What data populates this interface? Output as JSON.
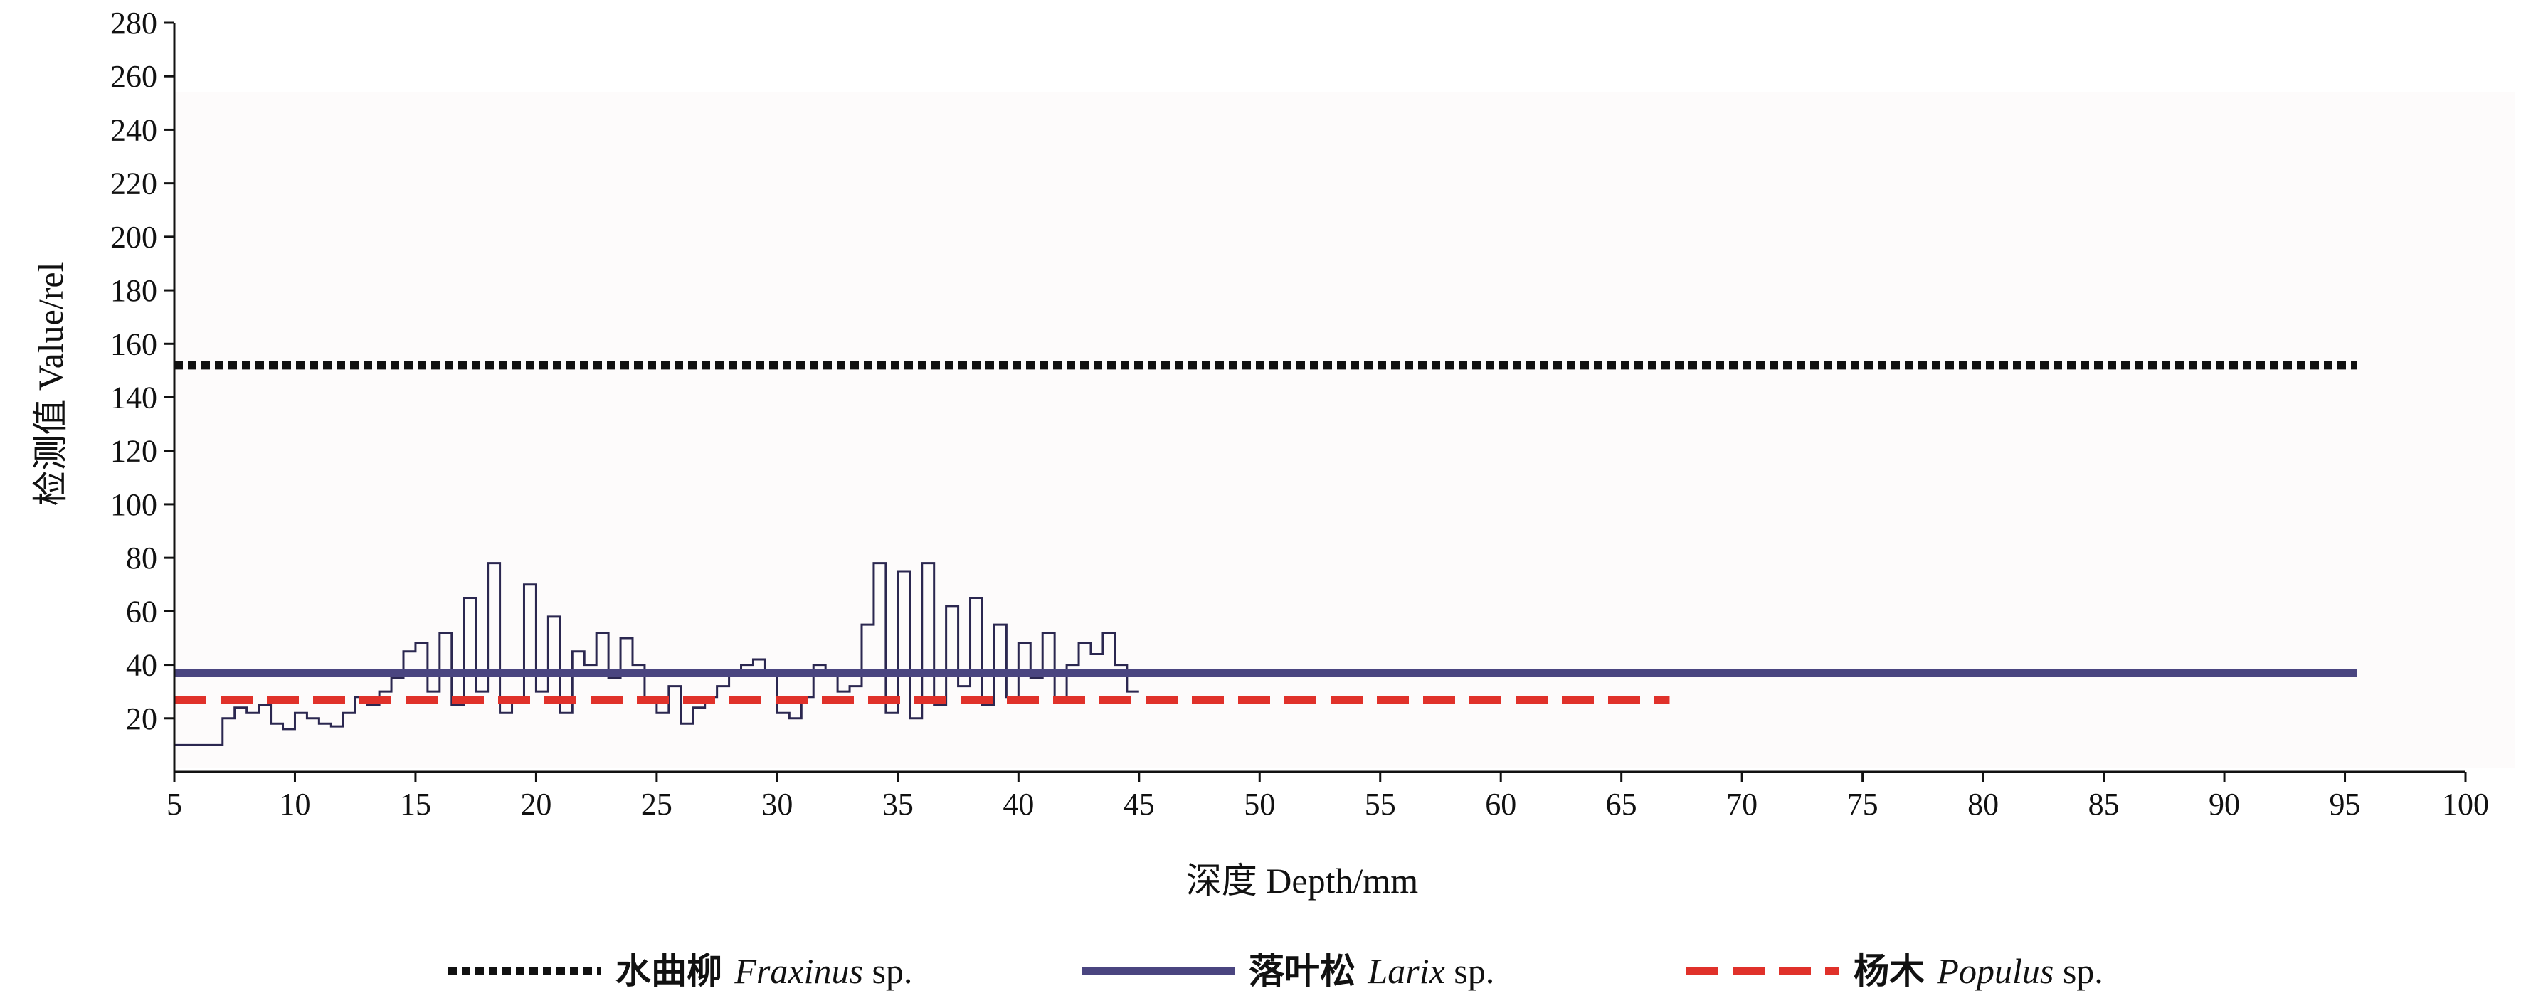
{
  "chart_data": {
    "type": "line",
    "xlabel": "深度  Depth/mm",
    "ylabel": "检测值  Value/rel",
    "xlim": [
      5,
      100
    ],
    "ylim": [
      0,
      280
    ],
    "x_ticks": [
      5,
      10,
      15,
      20,
      25,
      30,
      35,
      40,
      45,
      50,
      55,
      60,
      65,
      70,
      75,
      80,
      85,
      90,
      95,
      100
    ],
    "y_ticks": [
      20,
      40,
      60,
      80,
      100,
      120,
      140,
      160,
      180,
      200,
      220,
      240,
      260,
      280
    ],
    "grid": false,
    "legend_position": "bottom",
    "series": [
      {
        "name_cn": "水曲柳",
        "name_latin": "Fraxinus",
        "name_suffix": "sp.",
        "style": "dotted",
        "color": "#111111",
        "x": [
          5,
          95.5
        ],
        "y": [
          152,
          152
        ]
      },
      {
        "name_cn": "落叶松",
        "name_latin": "Larix",
        "name_suffix": "sp.",
        "style": "solid",
        "color": "#4a4580",
        "x": [
          5,
          95.5
        ],
        "y": [
          37,
          37
        ]
      },
      {
        "name_cn": "杨木",
        "name_latin": "Populus",
        "name_suffix": "sp.",
        "style": "dashed",
        "color": "#e0312a",
        "x": [
          5,
          67
        ],
        "y": [
          27,
          27
        ]
      }
    ],
    "trace": {
      "color": "#2b2750",
      "x": [
        5,
        6.5,
        7,
        7.5,
        8,
        8.5,
        9,
        9.5,
        10,
        10.5,
        11,
        11.5,
        12,
        12.5,
        13,
        13.5,
        14,
        14.5,
        15,
        15.5,
        16,
        16.5,
        17,
        17.5,
        18,
        18.5,
        19,
        19.5,
        20,
        20.5,
        21,
        21.5,
        22,
        22.5,
        23,
        23.5,
        24,
        24.5,
        25,
        25.5,
        26,
        26.5,
        27,
        27.5,
        28,
        28.5,
        29,
        29.5,
        30,
        30.5,
        31,
        31.5,
        32,
        32.5,
        33,
        33.5,
        34,
        34.5,
        35,
        35.5,
        36,
        36.5,
        37,
        37.5,
        38,
        38.5,
        39,
        39.5,
        40,
        40.5,
        41,
        41.5,
        42,
        42.5,
        43,
        43.5,
        44,
        44.5,
        45
      ],
      "y": [
        10,
        10,
        20,
        24,
        22,
        25,
        18,
        16,
        22,
        20,
        18,
        17,
        22,
        28,
        25,
        30,
        35,
        45,
        48,
        30,
        52,
        25,
        65,
        30,
        78,
        22,
        28,
        70,
        30,
        58,
        22,
        45,
        40,
        52,
        35,
        50,
        40,
        28,
        22,
        32,
        18,
        24,
        28,
        32,
        38,
        40,
        42,
        38,
        22,
        20,
        28,
        40,
        36,
        30,
        32,
        55,
        78,
        22,
        75,
        20,
        78,
        25,
        62,
        32,
        65,
        25,
        55,
        28,
        48,
        35,
        52,
        28,
        40,
        48,
        44,
        52,
        40,
        30,
        30
      ]
    }
  }
}
